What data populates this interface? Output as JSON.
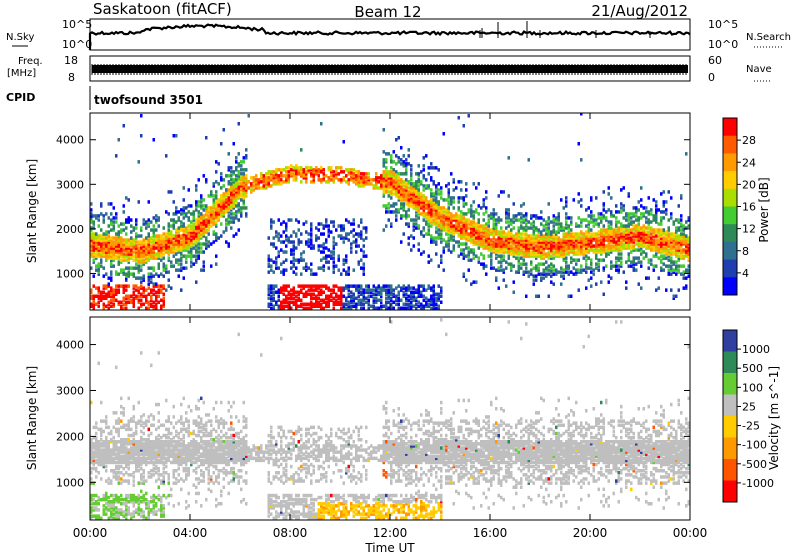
{
  "header": {
    "station": "Saskatoon (fitACF)",
    "beam": "Beam 12",
    "date": "21/Aug/2012"
  },
  "noise_panel": {
    "left_label": "N.Sky",
    "right_label": "N.Search",
    "left_ticks": [
      "10^5",
      "10^0"
    ],
    "right_ticks": [
      "10^5",
      "10^0"
    ]
  },
  "freq_panel": {
    "left_label_line1": "Freq.",
    "left_label_line2": "[MHz]",
    "right_label": "Nave",
    "left_ticks": [
      "18",
      "8"
    ],
    "right_ticks": [
      "60",
      "0"
    ]
  },
  "cpid_panel": {
    "label": "CPID",
    "program": "twofsound 3501"
  },
  "x_axis": {
    "label": "Time UT",
    "ticks": [
      "00:00",
      "04:00",
      "08:00",
      "12:00",
      "16:00",
      "20:00",
      "00:00"
    ]
  },
  "chart_data": [
    {
      "type": "heatmap",
      "quantity": "Power",
      "ylabel": "Slant Range [km]",
      "yticks": [
        1000,
        2000,
        3000,
        4000
      ],
      "ylim": [
        180,
        4600
      ],
      "xlim_hours": [
        0,
        24
      ],
      "colorbar_label": "Power [dB]",
      "colorbar_ticks": [
        "28",
        "24",
        "20",
        "16",
        "12",
        "8",
        "4"
      ],
      "colorbar_colors": [
        "#ff0000",
        "#ff5a00",
        "#ff9a00",
        "#ffcc00",
        "#aadd00",
        "#44cc33",
        "#2e8b57",
        "#2f6f8f",
        "#1f3fb0",
        "#0000ff"
      ],
      "features": [
        {
          "name": "main band",
          "points_hours_km": [
            [
              0,
              1600
            ],
            [
              2,
              1450
            ],
            [
              4,
              1800
            ],
            [
              6,
              2900
            ],
            [
              8,
              3200
            ],
            [
              10,
              3150
            ],
            [
              12,
              3000
            ],
            [
              14,
              2200
            ],
            [
              16,
              1700
            ],
            [
              18,
              1550
            ],
            [
              20,
              1650
            ],
            [
              22,
              1800
            ],
            [
              24,
              1500
            ]
          ],
          "power_db": 22
        },
        {
          "name": "near range echoes",
          "points_hours_km": [
            [
              1.5,
              550
            ],
            [
              3,
              350
            ],
            [
              7,
              650
            ],
            [
              8.5,
              500
            ],
            [
              10,
              350
            ]
          ],
          "power_db": 28
        }
      ]
    },
    {
      "type": "heatmap",
      "quantity": "Velocity",
      "ylabel": "Slant Range [km]",
      "yticks": [
        1000,
        2000,
        3000,
        4000
      ],
      "ylim": [
        180,
        4600
      ],
      "xlim_hours": [
        0,
        24
      ],
      "colorbar_label": "Velocity [m s^-1]",
      "colorbar_ticks": [
        "1000",
        "500",
        "100",
        "25",
        "-25",
        "-100",
        "-500",
        "-1000"
      ],
      "colorbar_colors": [
        "#2f3f9f",
        "#2e8b57",
        "#66cc33",
        "#bfbfbf",
        "#ffcc00",
        "#ff9900",
        "#ff5500",
        "#ff0000"
      ],
      "features": [
        {
          "name": "ground scatter band",
          "velocity_ms": 0
        },
        {
          "name": "green patch",
          "points_hours_km": [
            [
              0.5,
              850
            ],
            [
              1.5,
              750
            ],
            [
              3,
              700
            ]
          ],
          "velocity_ms": 150
        },
        {
          "name": "orange near-range echoes",
          "points_hours_km": [
            [
              10,
              300
            ],
            [
              12,
              250
            ],
            [
              14,
              300
            ]
          ],
          "velocity_ms": -150
        }
      ]
    }
  ]
}
